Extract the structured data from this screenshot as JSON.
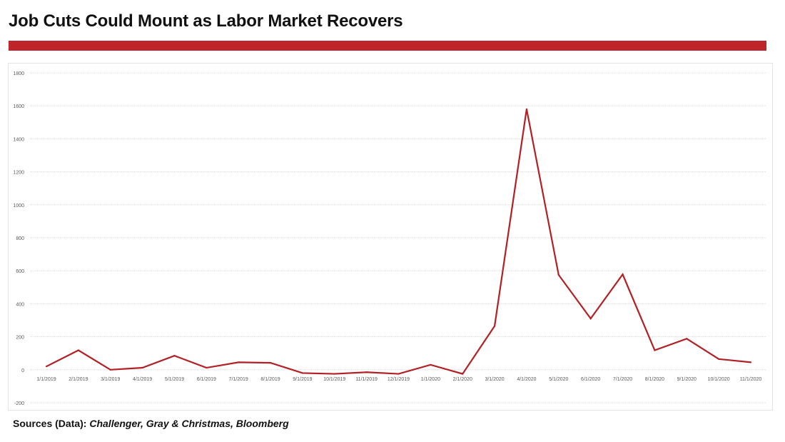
{
  "title": "Job Cuts Could Mount as Labor Market Recovers",
  "sources_label": "Sources (Data):",
  "sources_value": "Challenger, Gray & Christmas, Bloomberg",
  "colors": {
    "accent": "#c0252b",
    "line": "#b22024",
    "grid": "#d9d9d9",
    "tick_text": "#595959"
  },
  "chart_data": {
    "type": "line",
    "title": "",
    "xlabel": "",
    "ylabel": "",
    "ylim": [
      -200,
      1800
    ],
    "yticks": [
      -200,
      0,
      200,
      400,
      600,
      800,
      1000,
      1200,
      1400,
      1600,
      1800
    ],
    "grid": true,
    "legend": "none",
    "categories": [
      "1/1/2019",
      "2/1/2019",
      "3/1/2019",
      "4/1/2019",
      "5/1/2019",
      "6/1/2019",
      "7/1/2019",
      "8/1/2019",
      "9/1/2019",
      "10/1/2019",
      "11/1/2019",
      "12/1/2019",
      "1/1/2020",
      "2/1/2020",
      "3/1/2020",
      "4/1/2020",
      "5/1/2020",
      "6/1/2020",
      "7/1/2020",
      "8/1/2020",
      "9/1/2020",
      "10/1/2020",
      "11/1/2020"
    ],
    "series": [
      {
        "values": [
          20,
          118,
          0,
          12,
          85,
          12,
          45,
          42,
          -20,
          -25,
          -15,
          -25,
          30,
          -25,
          265,
          1580,
          575,
          310,
          578,
          118,
          188,
          65,
          45
        ]
      }
    ]
  }
}
